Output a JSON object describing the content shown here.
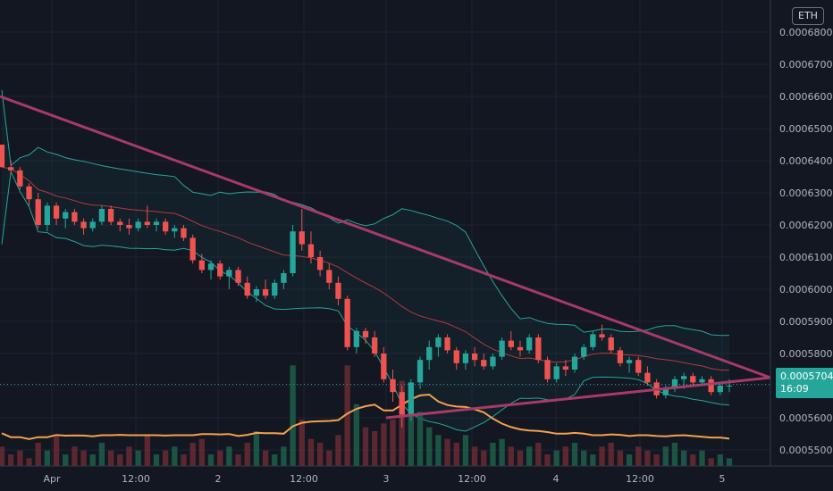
{
  "currency_badge": "ETH",
  "last_price": "0.00057043",
  "countdown": "16:09",
  "colors": {
    "bg": "#131722",
    "up": "#26a69a",
    "down": "#ef5350",
    "bb": "#26a69a",
    "sma": "#b33a3a",
    "trend": "#a83a68",
    "vol_ma": "#f5a04f",
    "grid": "#1f2330"
  },
  "chart_data": {
    "type": "candlestick",
    "y_ticks": [
      "0.00055000",
      "0.00056000",
      "0.00057000",
      "0.00058000",
      "0.00059000",
      "0.00060000",
      "0.00061000",
      "0.00062000",
      "0.00063000",
      "0.00064000",
      "0.00065000",
      "0.00066000",
      "0.00067000",
      "0.00068000"
    ],
    "ylim": [
      0.000545,
      0.00069
    ],
    "x_ticks": [
      "Apr",
      "12:00",
      "2",
      "12:00",
      "3",
      "12:00",
      "4",
      "12:00",
      "5"
    ],
    "candles": [
      [
        0.000645,
        0.000645,
        0.000638,
        0.000638
      ],
      [
        0.000638,
        0.00064,
        0.000636,
        0.000637
      ],
      [
        0.000637,
        0.000638,
        0.000631,
        0.000632
      ],
      [
        0.000632,
        0.000633,
        0.000626,
        0.000628
      ],
      [
        0.000628,
        0.00063,
        0.000619,
        0.00062
      ],
      [
        0.00062,
        0.000627,
        0.000618,
        0.000626
      ],
      [
        0.000626,
        0.000627,
        0.00062,
        0.000622
      ],
      [
        0.000622,
        0.000625,
        0.000619,
        0.000624
      ],
      [
        0.000624,
        0.000625,
        0.00062,
        0.000621
      ],
      [
        0.000621,
        0.000622,
        0.000617,
        0.000619
      ],
      [
        0.000619,
        0.000622,
        0.000618,
        0.000621
      ],
      [
        0.000621,
        0.000626,
        0.00062,
        0.000625
      ],
      [
        0.000625,
        0.000626,
        0.00062,
        0.000621
      ],
      [
        0.000621,
        0.000622,
        0.000618,
        0.00062
      ],
      [
        0.00062,
        0.000622,
        0.000617,
        0.000619
      ],
      [
        0.000619,
        0.000622,
        0.000618,
        0.000621
      ],
      [
        0.000621,
        0.000626,
        0.000619,
        0.00062
      ],
      [
        0.00062,
        0.000622,
        0.000618,
        0.000621
      ],
      [
        0.000621,
        0.000622,
        0.000617,
        0.000618
      ],
      [
        0.000618,
        0.00062,
        0.000616,
        0.000619
      ],
      [
        0.000619,
        0.00062,
        0.000615,
        0.000616
      ],
      [
        0.000616,
        0.000617,
        0.000608,
        0.000609
      ],
      [
        0.000609,
        0.000611,
        0.000605,
        0.000606
      ],
      [
        0.000606,
        0.000609,
        0.000603,
        0.000608
      ],
      [
        0.000608,
        0.000609,
        0.000603,
        0.000604
      ],
      [
        0.000604,
        0.000607,
        0.0006,
        0.000606
      ],
      [
        0.000606,
        0.000607,
        0.000601,
        0.000602
      ],
      [
        0.000602,
        0.000604,
        0.000597,
        0.000598
      ],
      [
        0.000598,
        0.000601,
        0.000596,
        0.0006
      ],
      [
        0.0006,
        0.000603,
        0.000597,
        0.000598
      ],
      [
        0.000598,
        0.000603,
        0.000597,
        0.000602
      ],
      [
        0.000602,
        0.000606,
        0.0006,
        0.000605
      ],
      [
        0.000605,
        0.00062,
        0.000604,
        0.000618
      ],
      [
        0.000618,
        0.000625,
        0.000612,
        0.000614
      ],
      [
        0.000614,
        0.000618,
        0.000608,
        0.00061
      ],
      [
        0.00061,
        0.000612,
        0.000604,
        0.000606
      ],
      [
        0.000606,
        0.000608,
        0.0006,
        0.000602
      ],
      [
        0.000602,
        0.000604,
        0.000595,
        0.000597
      ],
      [
        0.000597,
        0.000598,
        0.000581,
        0.000582
      ],
      [
        0.000582,
        0.000588,
        0.00058,
        0.000587
      ],
      [
        0.000587,
        0.000588,
        0.000583,
        0.000585
      ],
      [
        0.000585,
        0.000587,
        0.000579,
        0.00058
      ],
      [
        0.00058,
        0.000582,
        0.000571,
        0.000572
      ],
      [
        0.000572,
        0.000575,
        0.000565,
        0.000568
      ],
      [
        0.000568,
        0.00057,
        0.000557,
        0.000561
      ],
      [
        0.000561,
        0.000572,
        0.000559,
        0.000571
      ],
      [
        0.000571,
        0.000579,
        0.000569,
        0.000578
      ],
      [
        0.000578,
        0.000584,
        0.000575,
        0.000582
      ],
      [
        0.000582,
        0.000586,
        0.000579,
        0.000585
      ],
      [
        0.000585,
        0.000586,
        0.00058,
        0.000581
      ],
      [
        0.000581,
        0.000582,
        0.000575,
        0.000577
      ],
      [
        0.000577,
        0.000581,
        0.000575,
        0.00058
      ],
      [
        0.00058,
        0.000582,
        0.000576,
        0.000578
      ],
      [
        0.000578,
        0.00058,
        0.000575,
        0.000576
      ],
      [
        0.000576,
        0.00058,
        0.000575,
        0.000579
      ],
      [
        0.000579,
        0.000585,
        0.000578,
        0.000584
      ],
      [
        0.000584,
        0.000587,
        0.000581,
        0.000582
      ],
      [
        0.000582,
        0.000584,
        0.000579,
        0.000581
      ],
      [
        0.000581,
        0.000586,
        0.00058,
        0.000585
      ],
      [
        0.000585,
        0.000586,
        0.000577,
        0.000578
      ],
      [
        0.000578,
        0.000579,
        0.000571,
        0.000572
      ],
      [
        0.000572,
        0.000577,
        0.000571,
        0.000576
      ],
      [
        0.000576,
        0.000578,
        0.000573,
        0.000575
      ],
      [
        0.000575,
        0.00058,
        0.000574,
        0.000579
      ],
      [
        0.000579,
        0.000583,
        0.000578,
        0.000582
      ],
      [
        0.000582,
        0.000587,
        0.000581,
        0.000586
      ],
      [
        0.000586,
        0.000589,
        0.000584,
        0.000585
      ],
      [
        0.000585,
        0.000586,
        0.00058,
        0.000581
      ],
      [
        0.000581,
        0.000582,
        0.000576,
        0.000577
      ],
      [
        0.000577,
        0.000579,
        0.000574,
        0.000578
      ],
      [
        0.000578,
        0.000579,
        0.000573,
        0.000574
      ],
      [
        0.000574,
        0.000576,
        0.00057,
        0.000571
      ],
      [
        0.000571,
        0.000572,
        0.000566,
        0.000567
      ],
      [
        0.000567,
        0.00057,
        0.000566,
        0.000569
      ],
      [
        0.000569,
        0.000573,
        0.000568,
        0.000572
      ],
      [
        0.000572,
        0.000574,
        0.000569,
        0.000573
      ],
      [
        0.000573,
        0.000574,
        0.00057,
        0.000571
      ],
      [
        0.000571,
        0.000573,
        0.00057,
        0.000572
      ],
      [
        0.000572,
        0.000573,
        0.000567,
        0.000568
      ],
      [
        0.000568,
        0.000571,
        0.000567,
        0.00057
      ],
      [
        0.00057,
        0.000572,
        0.000568,
        0.00057
      ]
    ],
    "volumes": [
      5,
      3,
      4,
      2,
      6,
      4,
      8,
      3,
      5,
      4,
      3,
      6,
      4,
      3,
      5,
      4,
      8,
      3,
      4,
      5,
      3,
      6,
      7,
      3,
      4,
      5,
      3,
      6,
      9,
      4,
      3,
      5,
      26,
      12,
      7,
      6,
      4,
      8,
      26,
      16,
      10,
      9,
      11,
      12,
      22,
      20,
      14,
      10,
      8,
      7,
      6,
      8,
      5,
      4,
      6,
      7,
      5,
      4,
      5,
      6,
      3,
      4,
      5,
      6,
      4,
      3,
      5,
      6,
      4,
      3,
      5,
      4,
      3,
      5,
      6,
      4,
      3,
      4,
      2,
      3,
      2
    ],
    "vol_max": 30
  }
}
